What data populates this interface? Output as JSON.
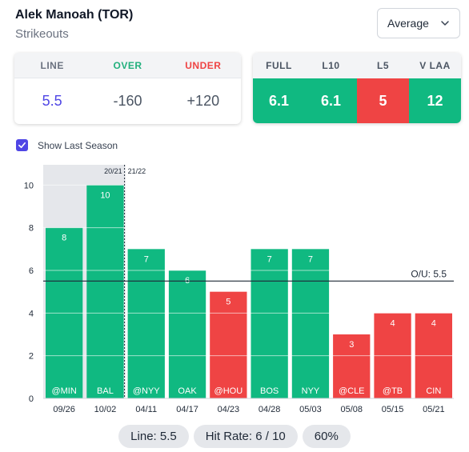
{
  "header": {
    "player_name": "Alek Manoah (TOR)",
    "stat_type": "Strikeouts"
  },
  "average_select": {
    "value": "Average"
  },
  "line_card": {
    "headers": {
      "line": "LINE",
      "over": "OVER",
      "under": "UNDER"
    },
    "values": {
      "line": "5.5",
      "over": "-160",
      "under": "+120"
    }
  },
  "split_card": {
    "headers": [
      "FULL",
      "L10",
      "L5",
      "V LAA"
    ],
    "values": [
      "6.1",
      "6.1",
      "5",
      "12"
    ],
    "status": [
      "green",
      "green",
      "red",
      "green"
    ]
  },
  "show_last_season": {
    "label": "Show Last Season",
    "checked": true
  },
  "colors": {
    "over": "#10b981",
    "under": "#ef4444",
    "accent": "#4f46e5",
    "last_season_bg": "#e5e7eb"
  },
  "chart_data": {
    "type": "bar",
    "categories": [
      "09/26",
      "10/02",
      "04/11",
      "04/17",
      "04/23",
      "04/28",
      "05/03",
      "05/08",
      "05/15",
      "05/21"
    ],
    "opponents": [
      "@MIN",
      "BAL",
      "@NYY",
      "OAK",
      "@HOU",
      "BOS",
      "NYY",
      "@CLE",
      "@TB",
      "CIN"
    ],
    "values": [
      8,
      10,
      7,
      6,
      5,
      7,
      7,
      3,
      4,
      4
    ],
    "result": [
      "over",
      "over",
      "over",
      "over",
      "under",
      "over",
      "over",
      "under",
      "under",
      "under"
    ],
    "ylim": [
      0,
      10.5
    ],
    "yticks": [
      0,
      2,
      4,
      6,
      8,
      10
    ],
    "line": 5.5,
    "line_label": "O/U: 5.5",
    "season_split": {
      "left_label": "20/21",
      "right_label": "21/22",
      "last_season_count": 2
    },
    "grid": true
  },
  "footer": {
    "line_label": "Line: 5.5",
    "hit_rate_label": "Hit Rate: 6 / 10",
    "percent_label": "60%"
  }
}
